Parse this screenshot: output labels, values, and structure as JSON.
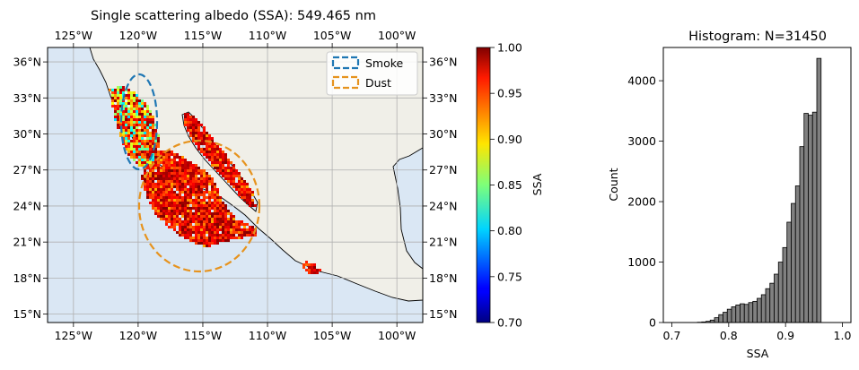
{
  "chart_data": [
    {
      "type": "heatmap",
      "title": "Single scattering albedo (SSA): 549.465 nm",
      "x_ticks": [
        "125°W",
        "120°W",
        "115°W",
        "110°W",
        "105°W",
        "100°W"
      ],
      "y_ticks": [
        "15°N",
        "18°N",
        "21°N",
        "24°N",
        "27°N",
        "30°N",
        "33°N",
        "36°N"
      ],
      "lon_range": [
        -127,
        -98
      ],
      "lat_range": [
        14.3,
        37.2
      ],
      "x_tick_values": [
        -125,
        -120,
        -115,
        -110,
        -105,
        -100
      ],
      "y_tick_values": [
        15,
        18,
        21,
        24,
        27,
        30,
        33,
        36
      ],
      "grid": true,
      "colormap": "jet",
      "ocean_color": "#dae7f4",
      "land_color": "#f0efe8",
      "legend": {
        "placement": "top-right",
        "entries": [
          {
            "label": "Smoke",
            "color": "#1f77b4",
            "style": "dashed-ellipse"
          },
          {
            "label": "Dust",
            "color": "#e6931e",
            "style": "dashed-ellipse"
          }
        ]
      },
      "colorbar": {
        "label": "SSA",
        "range": [
          0.7,
          1.0
        ],
        "ticks": [
          "0.70",
          "0.75",
          "0.80",
          "0.85",
          "0.90",
          "0.95",
          "1.00"
        ],
        "tick_values": [
          0.7,
          0.75,
          0.8,
          0.85,
          0.9,
          0.95,
          1.0
        ]
      }
    },
    {
      "type": "bar",
      "title": "Histogram: N=31450",
      "xlabel": "SSA",
      "ylabel": "Count",
      "xlim": [
        0.685,
        1.015
      ],
      "ylim": [
        0,
        4550
      ],
      "x_ticks": [
        "0.7",
        "0.8",
        "0.9",
        "1.0"
      ],
      "x_tick_values": [
        0.7,
        0.8,
        0.9,
        1.0
      ],
      "y_ticks": [
        "0",
        "1000",
        "2000",
        "3000",
        "4000"
      ],
      "y_tick_values": [
        0,
        1000,
        2000,
        3000,
        4000
      ],
      "bar_color": "#808080",
      "bin_start": 0.7,
      "bin_width": 0.0075,
      "values": [
        0,
        0,
        0,
        0,
        0,
        0,
        5,
        10,
        20,
        40,
        80,
        130,
        170,
        220,
        260,
        290,
        310,
        300,
        330,
        350,
        400,
        460,
        560,
        650,
        800,
        1000,
        1240,
        1660,
        1970,
        2260,
        2910,
        3460,
        3430,
        3480,
        4370
      ]
    }
  ]
}
